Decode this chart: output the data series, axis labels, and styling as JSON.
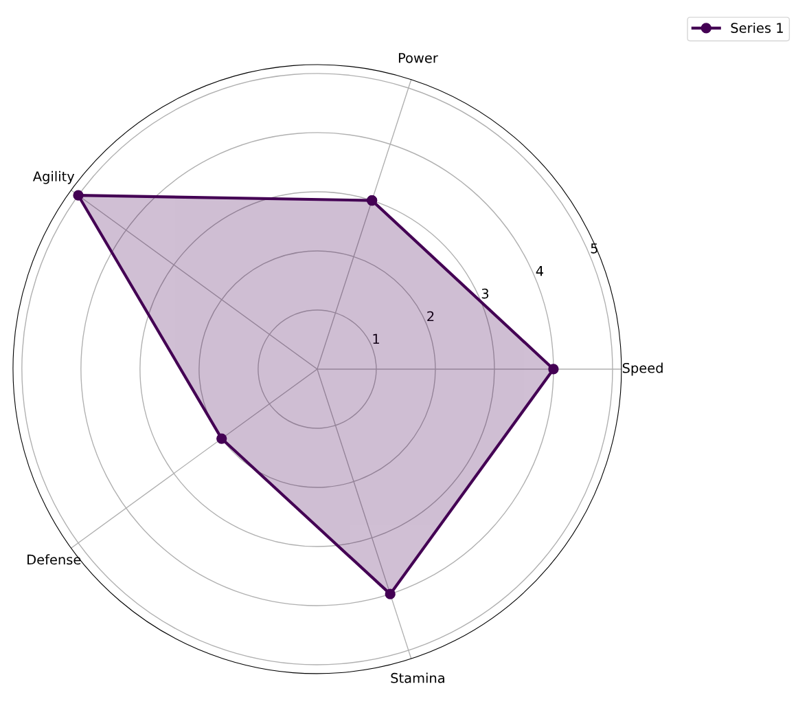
{
  "chart_data": {
    "type": "radar",
    "categories": [
      "Power",
      "Speed",
      "Stamina",
      "Defense",
      "Agility"
    ],
    "series": [
      {
        "name": "Series 1",
        "color": "#440154",
        "values": [
          3,
          4,
          4,
          2,
          5
        ]
      }
    ],
    "ylim": [
      0,
      5.15
    ],
    "yticks": [
      1,
      2,
      3,
      4,
      5
    ],
    "grid": true,
    "legend": "top right",
    "marker": "circle",
    "line_style": "solid"
  }
}
